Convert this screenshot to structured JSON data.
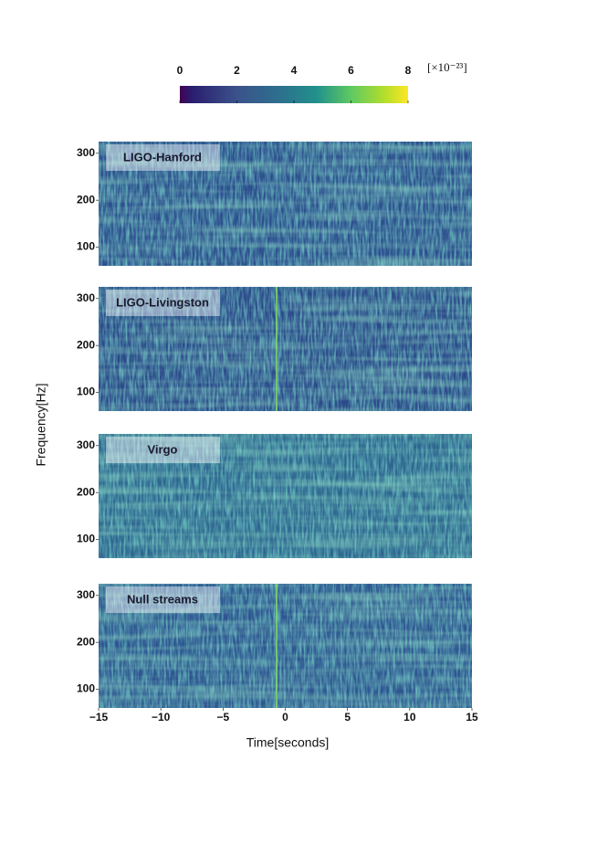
{
  "chart_data": {
    "type": "spectrogram",
    "colorbar": {
      "lim": [
        0,
        8
      ],
      "ticks": [
        0,
        2,
        4,
        6,
        8
      ],
      "label": "[×10⁻²³]"
    },
    "xlabel": "Time[seconds]",
    "ylabel": "Frequency[Hz]",
    "xlim": [
      -15,
      15
    ],
    "xticks": [
      {
        "value": -15,
        "label": "−15"
      },
      {
        "value": -10,
        "label": "−10"
      },
      {
        "value": -5,
        "label": "−5"
      },
      0,
      5,
      10,
      15
    ],
    "ylim": [
      60,
      325
    ],
    "yticks": [
      100,
      200,
      300
    ],
    "panels": [
      {
        "name": "LIGO-Hanford",
        "color": "#2d4f8e",
        "events": []
      },
      {
        "name": "LIGO-Livingston",
        "color": "#2c4a8a",
        "events": [
          -0.7
        ]
      },
      {
        "name": "Virgo",
        "color": "#2f6690",
        "events": []
      },
      {
        "name": "Null streams",
        "color": "#2e5590",
        "events": [
          -0.7
        ]
      }
    ]
  }
}
